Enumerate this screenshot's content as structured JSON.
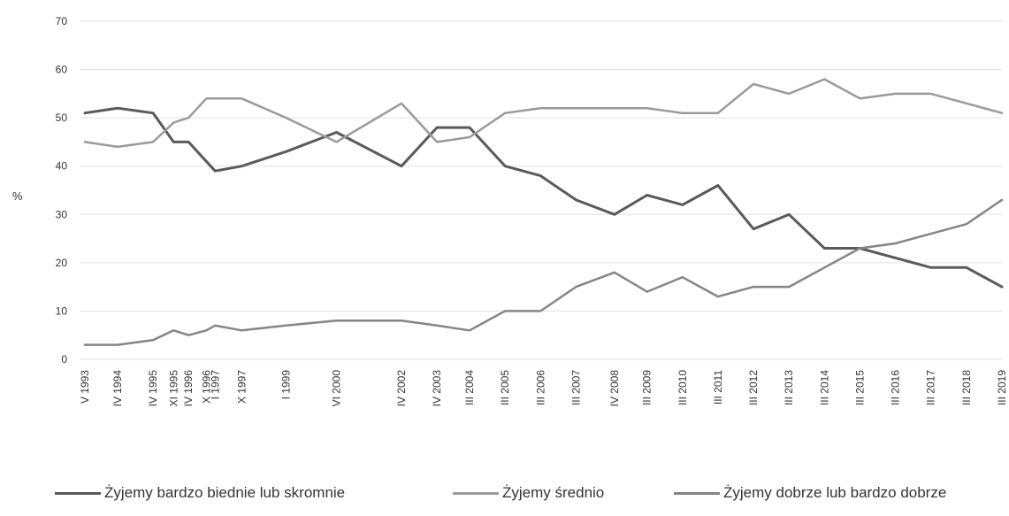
{
  "chart_data": {
    "type": "line",
    "ylabel": "%",
    "ylim": [
      0,
      70
    ],
    "yticks": [
      0,
      10,
      20,
      30,
      40,
      50,
      60,
      70
    ],
    "grid": true,
    "legend_position": "bottom",
    "x": [
      1993.33,
      1994.25,
      1995.25,
      1995.83,
      1996.25,
      1996.75,
      1997.0,
      1997.75,
      1999.0,
      2000.42,
      2002.25,
      2003.25,
      2004.17,
      2005.17,
      2006.17,
      2007.17,
      2008.25,
      2009.17,
      2010.17,
      2011.17,
      2012.17,
      2013.17,
      2014.17,
      2015.17,
      2016.17,
      2017.17,
      2018.17,
      2019.17
    ],
    "x_tick_labels": [
      "V 1993",
      "IV 1994",
      "IV 1995",
      "XI 1995",
      "IV 1996",
      "X 1996",
      "I 1997",
      "X 1997",
      "I 1999",
      "VI 2000",
      "IV 2002",
      "IV 2003",
      "III 2004",
      "III 2005",
      "III 2006",
      "III 2007",
      "IV 2008",
      "III 2009",
      "III 2010",
      "III 2011",
      "III 2012",
      "III 2013",
      "III 2014",
      "III 2015",
      "III 2016",
      "III 2017",
      "III 2018",
      "III 2019"
    ],
    "series": [
      {
        "name": "Żyjemy bardzo biednie lub skromnie",
        "color": "#5a5a5a",
        "values": [
          51,
          52,
          51,
          45,
          45,
          41,
          39,
          40,
          43,
          47,
          40,
          48,
          48,
          40,
          38,
          33,
          30,
          34,
          32,
          36,
          27,
          30,
          23,
          23,
          21,
          19,
          19,
          15
        ]
      },
      {
        "name": "Żyjemy średnio",
        "color": "#9a9a9a",
        "values": [
          45,
          44,
          45,
          49,
          50,
          54,
          54,
          54,
          50,
          45,
          53,
          45,
          46,
          51,
          52,
          52,
          52,
          52,
          51,
          51,
          57,
          55,
          58,
          54,
          55,
          55,
          53,
          51
        ]
      },
      {
        "name": "Żyjemy dobrze lub bardzo dobrze",
        "color": "#858585",
        "values": [
          3,
          3,
          4,
          6,
          5,
          6,
          7,
          6,
          7,
          8,
          8,
          7,
          6,
          10,
          10,
          15,
          18,
          14,
          17,
          13,
          15,
          15,
          19,
          23,
          24,
          26,
          28,
          33
        ]
      }
    ]
  }
}
